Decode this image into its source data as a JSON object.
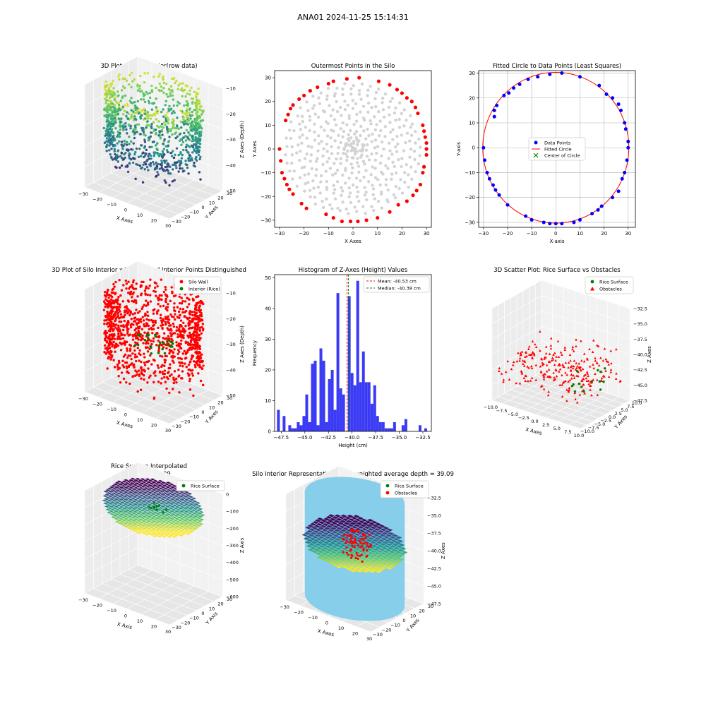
{
  "figure": {
    "suptitle": "ANA01 2024-11-25 15:14:31"
  },
  "colors": {
    "silo_wall": "#ff0000",
    "interior": "#008000",
    "data_points": "#0000ff",
    "fitted_circle": "#ff0000",
    "center": "#008000",
    "outer_point": "#ff0000",
    "inner_point": "#d3d3d3",
    "hist_bar": "#3b3bf5",
    "mean_line": "#ff0000",
    "median_line": "#008000",
    "cylinder": "#87ceeb"
  },
  "panels": [
    {
      "title": "3D Plot of Silo Interior(row data)",
      "xlabel": "X Axes",
      "ylabel": "Y Axes",
      "zlabel": "Z Axes (Depth)",
      "xticks": [
        "−30",
        "−20",
        "−10",
        "0",
        "10",
        "20",
        "30"
      ],
      "yticks": [
        "−30",
        "−20",
        "−10",
        "0",
        "10",
        "20",
        "30"
      ],
      "zticks": [
        "−50",
        "−40",
        "−30",
        "−20",
        "−10"
      ]
    },
    {
      "title": "Outermost Points in the Silo",
      "xlabel": "X Axes",
      "ylabel": "Y Axes",
      "xticks": [
        "−30",
        "−20",
        "−10",
        "0",
        "10",
        "20",
        "30"
      ],
      "yticks": [
        "−30",
        "−20",
        "−10",
        "0",
        "10",
        "20",
        "30"
      ]
    },
    {
      "title": "Fitted Circle to Data Points (Least Squares)",
      "xlabel": "X-axis",
      "ylabel": "Y-axis",
      "xticks": [
        "−30",
        "−20",
        "−10",
        "0",
        "10",
        "20",
        "30"
      ],
      "yticks": [
        "−30",
        "−20",
        "−10",
        "0",
        "10",
        "20",
        "30"
      ],
      "legend": [
        "Data Points",
        "Fitted Circle",
        "Center of Circle"
      ]
    },
    {
      "title": "3D Plot of Silo Interior with Wall and Interior Points Distinguished",
      "xlabel": "X Axes",
      "ylabel": "Y Axes",
      "zlabel": "Z Axes (Depth)",
      "xticks": [
        "−30",
        "−20",
        "−10",
        "0",
        "10",
        "20",
        "30"
      ],
      "yticks": [
        "−30",
        "−20",
        "−10",
        "0",
        "10",
        "20",
        "30"
      ],
      "zticks": [
        "−50",
        "−40",
        "−30",
        "−20",
        "−10"
      ],
      "legend": [
        "Silo Wall",
        "Interior (Rice)"
      ]
    },
    {
      "title": "Histogram of Z-Axes (Height) Values",
      "xlabel": "Height (cm)",
      "ylabel": "Frequency",
      "xticks": [
        "−47.5",
        "−45.0",
        "−42.5",
        "−40.0",
        "−37.5",
        "−35.0",
        "−32.5"
      ],
      "yticks": [
        "0",
        "10",
        "20",
        "30",
        "40",
        "50"
      ],
      "legend": [
        "Mean: -40.53 cm",
        "Median: -40.38 cm"
      ]
    },
    {
      "title": "3D Scatter Plot: Rice Surface vs Obstacles",
      "xlabel": "X Axes",
      "ylabel": "Y Axes",
      "zlabel": "Z Axes",
      "xticks": [
        "−10.0",
        "−7.5",
        "−5.0",
        "−2.5",
        "0.0",
        "2.5",
        "5.0",
        "7.5",
        "10.0"
      ],
      "yticks": [
        "−10.0",
        "−7.5",
        "−5.0",
        "−2.5",
        "0.0",
        "2.5",
        "5.0",
        "7.5",
        "10.0"
      ],
      "zticks": [
        "−47.5",
        "−45.0",
        "−42.5",
        "−40.0",
        "−37.5",
        "−35.0",
        "−32.5"
      ],
      "legend": [
        "Rice Surface",
        "Obstacles"
      ]
    },
    {
      "title": "Rice Surface Interpolated",
      "title2": "depth = 39.09",
      "xlabel": "X Axis",
      "ylabel": "Y Axis",
      "zlabel": "Z Axis",
      "xticks": [
        "−30",
        "−20",
        "−10",
        "0",
        "10",
        "20",
        "30"
      ],
      "yticks": [
        "−30",
        "−20",
        "−10",
        "0",
        "10",
        "20",
        "30"
      ],
      "zticks": [
        "−600",
        "−500",
        "−400",
        "−300",
        "−200",
        "−100",
        "0"
      ],
      "legend": [
        "Rice Surface"
      ]
    },
    {
      "title": "Silo Interior Representation using weighted average depth = 39.09",
      "xlabel": "X Axes",
      "ylabel": "Y Axes",
      "zlabel": "Z Axes",
      "xticks": [
        "−30",
        "−20",
        "−10",
        "0",
        "10",
        "20",
        "30"
      ],
      "yticks": [
        "−30",
        "−20",
        "−10",
        "0",
        "10",
        "20",
        "30"
      ],
      "zticks": [
        "−47.5",
        "−45.0",
        "−42.5",
        "−40.0",
        "−37.5",
        "−35.0",
        "−32.5"
      ],
      "legend": [
        "Rice Surface",
        "Obstacles"
      ]
    }
  ],
  "chart_data": [
    {
      "type": "scatter",
      "subtype": "3d",
      "title": "3D Plot of Silo Interior(row data)",
      "description_series": [
        {
          "name": "",
          "colormap": "viridis"
        }
      ],
      "xlim": [
        -30,
        30
      ],
      "ylim": [
        -30,
        30
      ],
      "zlim": [
        -55,
        -5
      ]
    },
    {
      "type": "scatter",
      "title": "Outermost Points in the Silo",
      "xlim": [
        -32,
        32
      ],
      "ylim": [
        -33,
        33
      ],
      "series": [
        {
          "name": "",
          "color": "#ff0000",
          "points": [
            [
              -30,
              0
            ],
            [
              -29.5,
              -5
            ],
            [
              -29,
              -10
            ],
            [
              -28,
              -12.5
            ],
            [
              -27,
              -15
            ],
            [
              -26,
              -17
            ],
            [
              -24.5,
              -19
            ],
            [
              -21,
              -23
            ],
            [
              -19,
              -25
            ],
            [
              -11,
              -27.5
            ],
            [
              -8,
              -29
            ],
            [
              -4.5,
              -30.5
            ],
            [
              -1,
              -30.5
            ],
            [
              2,
              -30.5
            ],
            [
              5.5,
              -30
            ],
            [
              10,
              -29
            ],
            [
              15,
              -26.5
            ],
            [
              18.5,
              -23.5
            ],
            [
              22,
              -22
            ],
            [
              24.5,
              -19.5
            ],
            [
              26,
              -17.5
            ],
            [
              27.5,
              -15
            ],
            [
              28.5,
              -10
            ],
            [
              29,
              -7.5
            ],
            [
              30,
              -2.5
            ],
            [
              30,
              0
            ],
            [
              30,
              2.5
            ],
            [
              29.5,
              5
            ],
            [
              29,
              7.5
            ],
            [
              28.5,
              10
            ],
            [
              26.5,
              15
            ],
            [
              25.5,
              17.5
            ],
            [
              24,
              20
            ],
            [
              22,
              21.5
            ],
            [
              20,
              23.5
            ],
            [
              18,
              25
            ],
            [
              15,
              27
            ],
            [
              10.5,
              28.5
            ],
            [
              2.5,
              30
            ],
            [
              -2.5,
              29.5
            ],
            [
              -8,
              28.5
            ],
            [
              -10,
              27.5
            ],
            [
              -14.5,
              26
            ],
            [
              -17.5,
              24.5
            ],
            [
              -20,
              22.5
            ],
            [
              -22,
              21
            ],
            [
              -24.5,
              18.5
            ],
            [
              -25.5,
              17
            ],
            [
              -26.5,
              14.5
            ],
            [
              -27.5,
              12
            ]
          ]
        }
      ]
    },
    {
      "type": "scatter",
      "title": "Fitted Circle to Data Points (Least Squares)",
      "xlim": [
        -32,
        33
      ],
      "ylim": [
        -32,
        31
      ],
      "series": [
        {
          "name": "Data Points",
          "color": "#0000ff",
          "points": [
            [
              -30,
              0
            ],
            [
              -29.5,
              -5
            ],
            [
              -28.5,
              -10
            ],
            [
              -27.5,
              -12.5
            ],
            [
              -26,
              -15
            ],
            [
              -25,
              -17
            ],
            [
              -23.5,
              -19
            ],
            [
              -20,
              -23
            ],
            [
              -12.5,
              -27.5
            ],
            [
              -10,
              -29
            ],
            [
              -5,
              -30
            ],
            [
              -2.5,
              -30.5
            ],
            [
              0,
              -30.5
            ],
            [
              2.5,
              -30.5
            ],
            [
              7.5,
              -30
            ],
            [
              10,
              -29
            ],
            [
              15,
              -26.5
            ],
            [
              17.5,
              -25
            ],
            [
              19,
              -23.5
            ],
            [
              23.5,
              -20
            ],
            [
              26,
              -17.5
            ],
            [
              27.5,
              -12.5
            ],
            [
              28.5,
              -10
            ],
            [
              29.5,
              -5
            ],
            [
              30,
              0
            ],
            [
              30,
              2.5
            ],
            [
              29,
              7.5
            ],
            [
              28.5,
              10
            ],
            [
              27,
              15
            ],
            [
              26,
              17.5
            ],
            [
              23.5,
              20
            ],
            [
              21,
              21.5
            ],
            [
              18,
              25
            ],
            [
              10,
              28.5
            ],
            [
              2.5,
              30
            ],
            [
              -2.5,
              29.5
            ],
            [
              -7.5,
              28.5
            ],
            [
              -11.5,
              27.5
            ],
            [
              -15,
              25.5
            ],
            [
              -17.5,
              24
            ],
            [
              -19.5,
              22
            ],
            [
              -21.5,
              21
            ],
            [
              -24.5,
              17
            ],
            [
              -25.5,
              15
            ],
            [
              -25.5,
              12.5
            ]
          ]
        },
        {
          "name": "Fitted Circle",
          "color": "#ff0000",
          "center": [
            0,
            0
          ],
          "radius": 30.3
        },
        {
          "name": "Center of Circle",
          "color": "#008000",
          "points": [
            [
              0.5,
              -0.5
            ]
          ]
        }
      ]
    },
    {
      "type": "scatter",
      "subtype": "3d",
      "title": "3D Plot of Silo Interior with Wall and Interior Points Distinguished",
      "series": [
        {
          "name": "Silo Wall",
          "color": "#ff0000"
        },
        {
          "name": "Interior (Rice)",
          "color": "#008000"
        }
      ],
      "xlim": [
        -30,
        30
      ],
      "ylim": [
        -30,
        30
      ],
      "zlim": [
        -55,
        -5
      ]
    },
    {
      "type": "bar",
      "subtype": "histogram",
      "title": "Histogram of Z-Axes (Height) Values",
      "xlabel": "Height (cm)",
      "ylabel": "Frequency",
      "xlim": [
        -48.2,
        -31.6
      ],
      "ylim": [
        0,
        51
      ],
      "bin_width": 0.3,
      "bins": [
        [
          -47.8,
          7
        ],
        [
          -47.5,
          0
        ],
        [
          -47.2,
          5
        ],
        [
          -46.9,
          0
        ],
        [
          -46.6,
          2
        ],
        [
          -46.3,
          1
        ],
        [
          -46.0,
          1
        ],
        [
          -45.7,
          3
        ],
        [
          -45.4,
          2
        ],
        [
          -45.1,
          5
        ],
        [
          -44.8,
          12
        ],
        [
          -44.5,
          3
        ],
        [
          -44.2,
          22
        ],
        [
          -43.9,
          23
        ],
        [
          -43.6,
          2
        ],
        [
          -43.3,
          27
        ],
        [
          -43.0,
          23
        ],
        [
          -42.7,
          3
        ],
        [
          -42.4,
          17
        ],
        [
          -42.1,
          20
        ],
        [
          -41.8,
          7
        ],
        [
          -41.5,
          45
        ],
        [
          -41.2,
          14
        ],
        [
          -40.9,
          12
        ],
        [
          -40.6,
          0
        ],
        [
          -40.3,
          44
        ],
        [
          -40.0,
          19
        ],
        [
          -39.7,
          15
        ],
        [
          -39.4,
          49
        ],
        [
          -39.1,
          16
        ],
        [
          -38.8,
          26
        ],
        [
          -38.5,
          16
        ],
        [
          -38.2,
          16
        ],
        [
          -37.9,
          9
        ],
        [
          -37.6,
          15
        ],
        [
          -37.3,
          5
        ],
        [
          -37.0,
          3
        ],
        [
          -36.7,
          3
        ],
        [
          -36.4,
          1
        ],
        [
          -36.1,
          1
        ],
        [
          -35.8,
          1
        ],
        [
          -35.5,
          3
        ],
        [
          -35.2,
          0
        ],
        [
          -34.9,
          0
        ],
        [
          -34.6,
          2
        ],
        [
          -34.3,
          4
        ],
        [
          -34.0,
          0
        ],
        [
          -33.7,
          0
        ],
        [
          -33.4,
          0
        ],
        [
          -33.1,
          0
        ],
        [
          -32.8,
          2
        ],
        [
          -32.5,
          0
        ],
        [
          -32.2,
          1
        ]
      ],
      "lines": [
        {
          "name": "Mean: -40.53 cm",
          "x": -40.53,
          "color": "#ff0000"
        },
        {
          "name": "Median: -40.38 cm",
          "x": -40.38,
          "color": "#008000"
        }
      ],
      "legend_position": "top-right"
    },
    {
      "type": "scatter",
      "subtype": "3d",
      "title": "3D Scatter Plot: Rice Surface vs Obstacles",
      "series": [
        {
          "name": "Rice Surface",
          "color": "#008000"
        },
        {
          "name": "Obstacles",
          "color": "#ff0000"
        }
      ],
      "xlim": [
        -10,
        10
      ],
      "ylim": [
        -10,
        10
      ],
      "zlim": [
        -48,
        -32
      ]
    },
    {
      "type": "area",
      "subtype": "3d-surface",
      "title": "Rice Surface Interpolated",
      "series": [
        {
          "name": "Rice Surface",
          "color": "#008000"
        }
      ],
      "xlim": [
        -30,
        30
      ],
      "ylim": [
        -30,
        30
      ],
      "zlim": [
        -600,
        0
      ]
    },
    {
      "type": "area",
      "subtype": "3d-surface",
      "title": "Silo Interior Representation using weighted average depth = 39.09",
      "series": [
        {
          "name": "Rice Surface",
          "color": "#008000"
        },
        {
          "name": "Obstacles",
          "color": "#ff0000"
        }
      ],
      "xlim": [
        -30,
        30
      ],
      "ylim": [
        -30,
        30
      ],
      "zlim": [
        -48,
        -32
      ]
    }
  ]
}
